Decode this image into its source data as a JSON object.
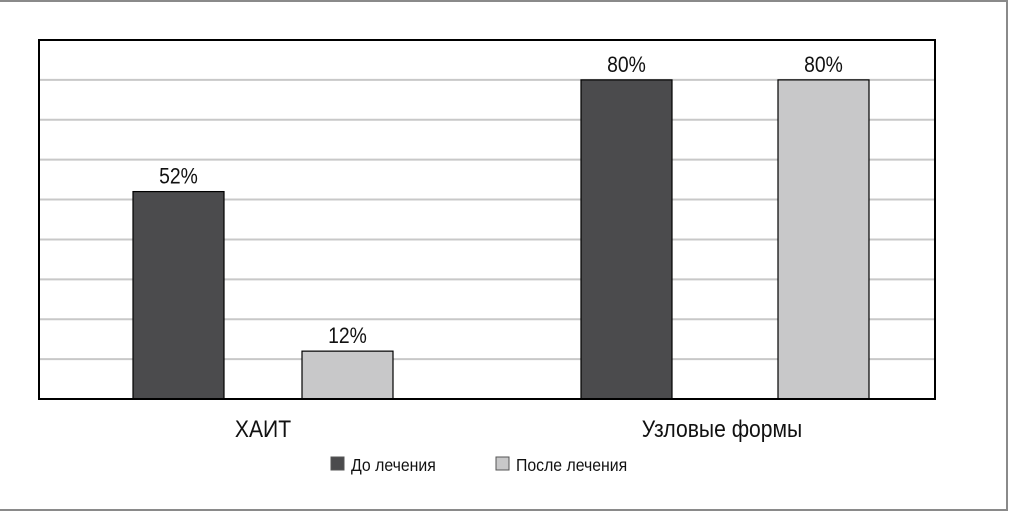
{
  "chart_data": {
    "type": "bar",
    "categories": [
      "ХАИТ",
      "Узловые формы"
    ],
    "series": [
      {
        "name": "До лечения",
        "values": [
          52,
          80
        ],
        "color": "#4b4b4d"
      },
      {
        "name": "После лечения",
        "values": [
          12,
          80
        ],
        "color": "#c8c8c9"
      }
    ],
    "data_labels": [
      [
        "52%",
        "80%"
      ],
      [
        "12%",
        "80%"
      ]
    ],
    "ylim": [
      0,
      90
    ],
    "ytick_step": 10,
    "y_axis_labels_shown": false,
    "grid": true,
    "legend_placement": "bottom"
  }
}
